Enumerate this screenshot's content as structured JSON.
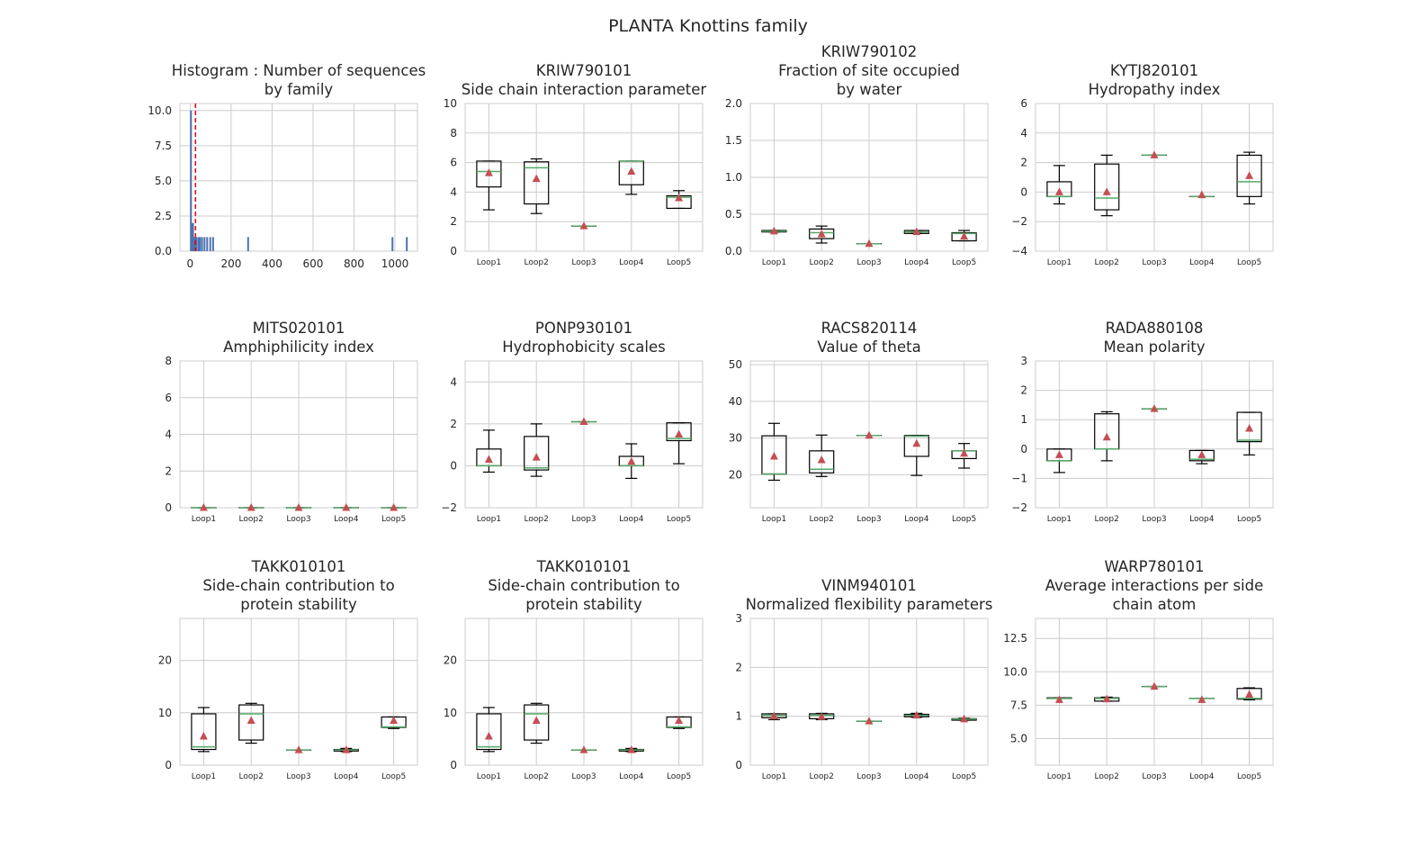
{
  "figure": {
    "title": "PLANTA Knottins family"
  },
  "chart_data": [
    {
      "id": "hist",
      "type": "histogram",
      "title_lines": [
        "Histogram : Number of sequences",
        "by family"
      ],
      "xlim": [
        -50,
        1110
      ],
      "ylim": [
        0,
        10.5
      ],
      "xticks": [
        0,
        200,
        400,
        600,
        800,
        1000
      ],
      "yticks": [
        0.0,
        2.5,
        5.0,
        7.5,
        10.0
      ],
      "ytick_labels": [
        "0.0",
        "2.5",
        "5.0",
        "7.5",
        "10.0"
      ],
      "bars": [
        {
          "x": 4,
          "h": 10
        },
        {
          "x": 9,
          "h": 2
        },
        {
          "x": 14,
          "h": 2
        },
        {
          "x": 22,
          "h": 1
        },
        {
          "x": 30,
          "h": 1
        },
        {
          "x": 40,
          "h": 1
        },
        {
          "x": 48,
          "h": 1
        },
        {
          "x": 58,
          "h": 1
        },
        {
          "x": 70,
          "h": 1
        },
        {
          "x": 83,
          "h": 1
        },
        {
          "x": 98,
          "h": 1
        },
        {
          "x": 112,
          "h": 1
        },
        {
          "x": 283,
          "h": 1
        },
        {
          "x": 988,
          "h": 1
        },
        {
          "x": 1058,
          "h": 1
        }
      ],
      "vline": 26,
      "colors": {
        "bar": "#4c72b0",
        "vline": "#e8000b"
      }
    },
    {
      "id": "kriw790101",
      "type": "box",
      "title_lines": [
        "KRIW790101",
        "Side chain interaction parameter"
      ],
      "ylim": [
        0,
        10
      ],
      "yticks": [
        0,
        2,
        4,
        6,
        8,
        10
      ],
      "ytick_labels": [
        "0",
        "2",
        "4",
        "6",
        "8",
        "10"
      ],
      "categories": [
        "Loop1",
        "Loop2",
        "Loop3",
        "Loop4",
        "Loop5"
      ],
      "boxes": [
        {
          "wl": 2.8,
          "q1": 4.35,
          "med": 5.4,
          "q3": 6.1,
          "wh": 6.1,
          "mean": 5.3
        },
        {
          "wl": 2.55,
          "q1": 3.2,
          "med": 5.65,
          "q3": 6.05,
          "wh": 6.25,
          "mean": 4.9
        },
        {
          "wl": 1.7,
          "q1": 1.7,
          "med": 1.7,
          "q3": 1.7,
          "wh": 1.7,
          "mean": 1.7
        },
        {
          "wl": 3.85,
          "q1": 4.5,
          "med": 6.1,
          "q3": 6.1,
          "wh": 6.1,
          "mean": 5.4
        },
        {
          "wl": 2.9,
          "q1": 2.9,
          "med": 3.65,
          "q3": 3.75,
          "wh": 4.1,
          "mean": 3.6
        }
      ]
    },
    {
      "id": "kriw790102",
      "type": "box",
      "title_lines": [
        "KRIW790102",
        "Fraction of site occupied",
        "by water"
      ],
      "ylim": [
        0,
        2
      ],
      "yticks": [
        0,
        0.5,
        1,
        1.5,
        2
      ],
      "ytick_labels": [
        "0.0",
        "0.5",
        "1.0",
        "1.5",
        "2.0"
      ],
      "categories": [
        "Loop1",
        "Loop2",
        "Loop3",
        "Loop4",
        "Loop5"
      ],
      "boxes": [
        {
          "wl": 0.26,
          "q1": 0.26,
          "med": 0.27,
          "q3": 0.28,
          "wh": 0.28,
          "mean": 0.27
        },
        {
          "wl": 0.11,
          "q1": 0.17,
          "med": 0.25,
          "q3": 0.3,
          "wh": 0.34,
          "mean": 0.23
        },
        {
          "wl": 0.1,
          "q1": 0.1,
          "med": 0.1,
          "q3": 0.1,
          "wh": 0.1,
          "mean": 0.1
        },
        {
          "wl": 0.24,
          "q1": 0.24,
          "med": 0.26,
          "q3": 0.28,
          "wh": 0.28,
          "mean": 0.26
        },
        {
          "wl": 0.14,
          "q1": 0.14,
          "med": 0.24,
          "q3": 0.25,
          "wh": 0.28,
          "mean": 0.2
        }
      ]
    },
    {
      "id": "kytj820101",
      "type": "box",
      "title_lines": [
        "KYTJ820101",
        "Hydropathy index"
      ],
      "ylim": [
        -4,
        6
      ],
      "yticks": [
        -4,
        -2,
        0,
        2,
        4,
        6
      ],
      "ytick_labels": [
        "−4",
        "−2",
        "0",
        "2",
        "4",
        "6"
      ],
      "categories": [
        "Loop1",
        "Loop2",
        "Loop3",
        "Loop4",
        "Loop5"
      ],
      "boxes": [
        {
          "wl": -0.8,
          "q1": -0.3,
          "med": -0.3,
          "q3": 0.7,
          "wh": 1.8,
          "mean": 0.0
        },
        {
          "wl": -1.6,
          "q1": -1.2,
          "med": -0.4,
          "q3": 1.9,
          "wh": 2.5,
          "mean": 0.0
        },
        {
          "wl": 2.5,
          "q1": 2.5,
          "med": 2.5,
          "q3": 2.5,
          "wh": 2.5,
          "mean": 2.5
        },
        {
          "wl": -0.3,
          "q1": -0.3,
          "med": -0.3,
          "q3": -0.3,
          "wh": -0.3,
          "mean": -0.2
        },
        {
          "wl": -0.8,
          "q1": -0.3,
          "med": 0.7,
          "q3": 2.5,
          "wh": 2.7,
          "mean": 1.1
        }
      ]
    },
    {
      "id": "mits020101",
      "type": "box",
      "title_lines": [
        "MITS020101",
        "Amphiphilicity index"
      ],
      "ylim": [
        0,
        8
      ],
      "yticks": [
        0,
        2,
        4,
        6,
        8
      ],
      "ytick_labels": [
        "0",
        "2",
        "4",
        "6",
        "8"
      ],
      "categories": [
        "Loop1",
        "Loop2",
        "Loop3",
        "Loop4",
        "Loop5"
      ],
      "boxes": [
        {
          "wl": 0,
          "q1": 0,
          "med": 0,
          "q3": 0,
          "wh": 0,
          "mean": 0
        },
        {
          "wl": 0,
          "q1": 0,
          "med": 0,
          "q3": 0,
          "wh": 0,
          "mean": 0
        },
        {
          "wl": 0,
          "q1": 0,
          "med": 0,
          "q3": 0,
          "wh": 0,
          "mean": 0
        },
        {
          "wl": 0,
          "q1": 0,
          "med": 0,
          "q3": 0,
          "wh": 0,
          "mean": 0
        },
        {
          "wl": 0,
          "q1": 0,
          "med": 0,
          "q3": 0,
          "wh": 0,
          "mean": 0
        }
      ]
    },
    {
      "id": "ponp930101",
      "type": "box",
      "title_lines": [
        "PONP930101",
        "Hydrophobicity scales"
      ],
      "ylim": [
        -2,
        5
      ],
      "yticks": [
        -2,
        0,
        2,
        4
      ],
      "ytick_labels": [
        "−2",
        "0",
        "2",
        "4"
      ],
      "categories": [
        "Loop1",
        "Loop2",
        "Loop3",
        "Loop4",
        "Loop5"
      ],
      "boxes": [
        {
          "wl": -0.3,
          "q1": 0.0,
          "med": 0.0,
          "q3": 0.8,
          "wh": 1.7,
          "mean": 0.3
        },
        {
          "wl": -0.5,
          "q1": -0.2,
          "med": -0.1,
          "q3": 1.4,
          "wh": 2.0,
          "mean": 0.4
        },
        {
          "wl": 2.1,
          "q1": 2.1,
          "med": 2.1,
          "q3": 2.1,
          "wh": 2.1,
          "mean": 2.1
        },
        {
          "wl": -0.6,
          "q1": 0.0,
          "med": 0.0,
          "q3": 0.45,
          "wh": 1.05,
          "mean": 0.2
        },
        {
          "wl": 0.1,
          "q1": 1.2,
          "med": 1.3,
          "q3": 2.05,
          "wh": 2.05,
          "mean": 1.5
        }
      ]
    },
    {
      "id": "racs820114",
      "type": "box",
      "title_lines": [
        "RACS820114",
        "Value of theta"
      ],
      "ylim": [
        11,
        51
      ],
      "yticks": [
        20,
        30,
        40,
        50
      ],
      "ytick_labels": [
        "20",
        "30",
        "40",
        "50"
      ],
      "categories": [
        "Loop1",
        "Loop2",
        "Loop3",
        "Loop4",
        "Loop5"
      ],
      "boxes": [
        {
          "wl": 18.5,
          "q1": 20.2,
          "med": 20.2,
          "q3": 30.6,
          "wh": 34.0,
          "mean": 25.0
        },
        {
          "wl": 19.5,
          "q1": 20.5,
          "med": 21.5,
          "q3": 26.5,
          "wh": 30.8,
          "mean": 24.0
        },
        {
          "wl": 30.7,
          "q1": 30.7,
          "med": 30.7,
          "q3": 30.7,
          "wh": 30.7,
          "mean": 30.7
        },
        {
          "wl": 19.8,
          "q1": 25.0,
          "med": 30.5,
          "q3": 30.7,
          "wh": 30.7,
          "mean": 28.5
        },
        {
          "wl": 21.8,
          "q1": 24.4,
          "med": 26.5,
          "q3": 26.5,
          "wh": 28.5,
          "mean": 25.8
        }
      ]
    },
    {
      "id": "rada880108",
      "type": "box",
      "title_lines": [
        "RADA880108",
        "Mean polarity"
      ],
      "ylim": [
        -2,
        3
      ],
      "yticks": [
        -2,
        -1,
        0,
        1,
        2,
        3
      ],
      "ytick_labels": [
        "−2",
        "−1",
        "0",
        "1",
        "2",
        "3"
      ],
      "categories": [
        "Loop1",
        "Loop2",
        "Loop3",
        "Loop4",
        "Loop5"
      ],
      "boxes": [
        {
          "wl": -0.8,
          "q1": -0.4,
          "med": -0.4,
          "q3": 0.0,
          "wh": 0.0,
          "mean": -0.2
        },
        {
          "wl": -0.4,
          "q1": 0.0,
          "med": 0.0,
          "q3": 1.2,
          "wh": 1.27,
          "mean": 0.4
        },
        {
          "wl": 1.37,
          "q1": 1.37,
          "med": 1.37,
          "q3": 1.37,
          "wh": 1.37,
          "mean": 1.37
        },
        {
          "wl": -0.5,
          "q1": -0.4,
          "med": -0.35,
          "q3": -0.05,
          "wh": -0.05,
          "mean": -0.2
        },
        {
          "wl": -0.2,
          "q1": 0.25,
          "med": 0.3,
          "q3": 1.25,
          "wh": 1.25,
          "mean": 0.7
        }
      ]
    },
    {
      "id": "takk010101a",
      "type": "box",
      "title_lines": [
        "TAKK010101",
        "Side-chain contribution to",
        "protein stability"
      ],
      "ylim": [
        0,
        28
      ],
      "yticks": [
        0,
        10,
        20
      ],
      "ytick_labels": [
        "0",
        "10",
        "20"
      ],
      "categories": [
        "Loop1",
        "Loop2",
        "Loop3",
        "Loop4",
        "Loop5"
      ],
      "boxes": [
        {
          "wl": 2.6,
          "q1": 3.0,
          "med": 3.5,
          "q3": 9.8,
          "wh": 11.0,
          "mean": 5.5
        },
        {
          "wl": 4.2,
          "q1": 4.8,
          "med": 9.8,
          "q3": 11.5,
          "wh": 11.8,
          "mean": 8.5
        },
        {
          "wl": 2.9,
          "q1": 2.9,
          "med": 2.9,
          "q3": 2.9,
          "wh": 2.9,
          "mean": 2.9
        },
        {
          "wl": 2.6,
          "q1": 2.7,
          "med": 2.9,
          "q3": 3.0,
          "wh": 3.2,
          "mean": 2.9
        },
        {
          "wl": 7.0,
          "q1": 7.2,
          "med": 7.3,
          "q3": 9.2,
          "wh": 9.2,
          "mean": 8.5
        }
      ]
    },
    {
      "id": "takk010101b",
      "type": "box",
      "title_lines": [
        "TAKK010101",
        "Side-chain contribution to",
        "protein stability"
      ],
      "ylim": [
        0,
        28
      ],
      "yticks": [
        0,
        10,
        20
      ],
      "ytick_labels": [
        "0",
        "10",
        "20"
      ],
      "categories": [
        "Loop1",
        "Loop2",
        "Loop3",
        "Loop4",
        "Loop5"
      ],
      "boxes": [
        {
          "wl": 2.6,
          "q1": 3.0,
          "med": 3.5,
          "q3": 9.8,
          "wh": 11.0,
          "mean": 5.5
        },
        {
          "wl": 4.2,
          "q1": 4.8,
          "med": 9.8,
          "q3": 11.5,
          "wh": 11.8,
          "mean": 8.5
        },
        {
          "wl": 2.9,
          "q1": 2.9,
          "med": 2.9,
          "q3": 2.9,
          "wh": 2.9,
          "mean": 2.9
        },
        {
          "wl": 2.6,
          "q1": 2.7,
          "med": 2.9,
          "q3": 3.0,
          "wh": 3.2,
          "mean": 2.9
        },
        {
          "wl": 7.0,
          "q1": 7.2,
          "med": 7.3,
          "q3": 9.2,
          "wh": 9.2,
          "mean": 8.5
        }
      ]
    },
    {
      "id": "vinm940101",
      "type": "box",
      "title_lines": [
        "VINM940101",
        "Normalized flexibility parameters"
      ],
      "ylim": [
        0,
        3
      ],
      "yticks": [
        0,
        1,
        2,
        3
      ],
      "ytick_labels": [
        "0",
        "1",
        "2",
        "3"
      ],
      "categories": [
        "Loop1",
        "Loop2",
        "Loop3",
        "Loop4",
        "Loop5"
      ],
      "boxes": [
        {
          "wl": 0.93,
          "q1": 0.97,
          "med": 1.02,
          "q3": 1.05,
          "wh": 1.05,
          "mean": 1.0
        },
        {
          "wl": 0.93,
          "q1": 0.95,
          "med": 1.02,
          "q3": 1.05,
          "wh": 1.06,
          "mean": 0.99
        },
        {
          "wl": 0.9,
          "q1": 0.9,
          "med": 0.9,
          "q3": 0.9,
          "wh": 0.9,
          "mean": 0.9
        },
        {
          "wl": 0.98,
          "q1": 0.99,
          "med": 1.02,
          "q3": 1.04,
          "wh": 1.06,
          "mean": 1.02
        },
        {
          "wl": 0.92,
          "q1": 0.92,
          "med": 0.94,
          "q3": 0.95,
          "wh": 0.96,
          "mean": 0.94
        }
      ]
    },
    {
      "id": "warp780101",
      "type": "box",
      "title_lines": [
        "WARP780101",
        "Average interactions per side",
        "chain atom"
      ],
      "ylim": [
        3,
        14
      ],
      "yticks": [
        5,
        7.5,
        10,
        12.5
      ],
      "ytick_labels": [
        "5.0",
        "7.5",
        "10.0",
        "12.5"
      ],
      "categories": [
        "Loop1",
        "Loop2",
        "Loop3",
        "Loop4",
        "Loop5"
      ],
      "boxes": [
        {
          "wl": 8.0,
          "q1": 8.0,
          "med": 8.0,
          "q3": 8.05,
          "wh": 8.05,
          "mean": 7.9
        },
        {
          "wl": 7.8,
          "q1": 7.8,
          "med": 8.0,
          "q3": 8.05,
          "wh": 8.1,
          "mean": 7.95
        },
        {
          "wl": 8.9,
          "q1": 8.9,
          "med": 8.9,
          "q3": 8.9,
          "wh": 8.9,
          "mean": 8.9
        },
        {
          "wl": 8.0,
          "q1": 8.0,
          "med": 8.0,
          "q3": 8.0,
          "wh": 8.0,
          "mean": 7.9
        },
        {
          "wl": 7.9,
          "q1": 7.95,
          "med": 8.0,
          "q3": 8.75,
          "wh": 8.8,
          "mean": 8.3
        }
      ]
    }
  ],
  "colors": {
    "grid": "#cccccc",
    "spine": "#cccccc",
    "box": "#000000",
    "median": "#55a868",
    "mean": "#c44e52",
    "text": "#262626"
  }
}
